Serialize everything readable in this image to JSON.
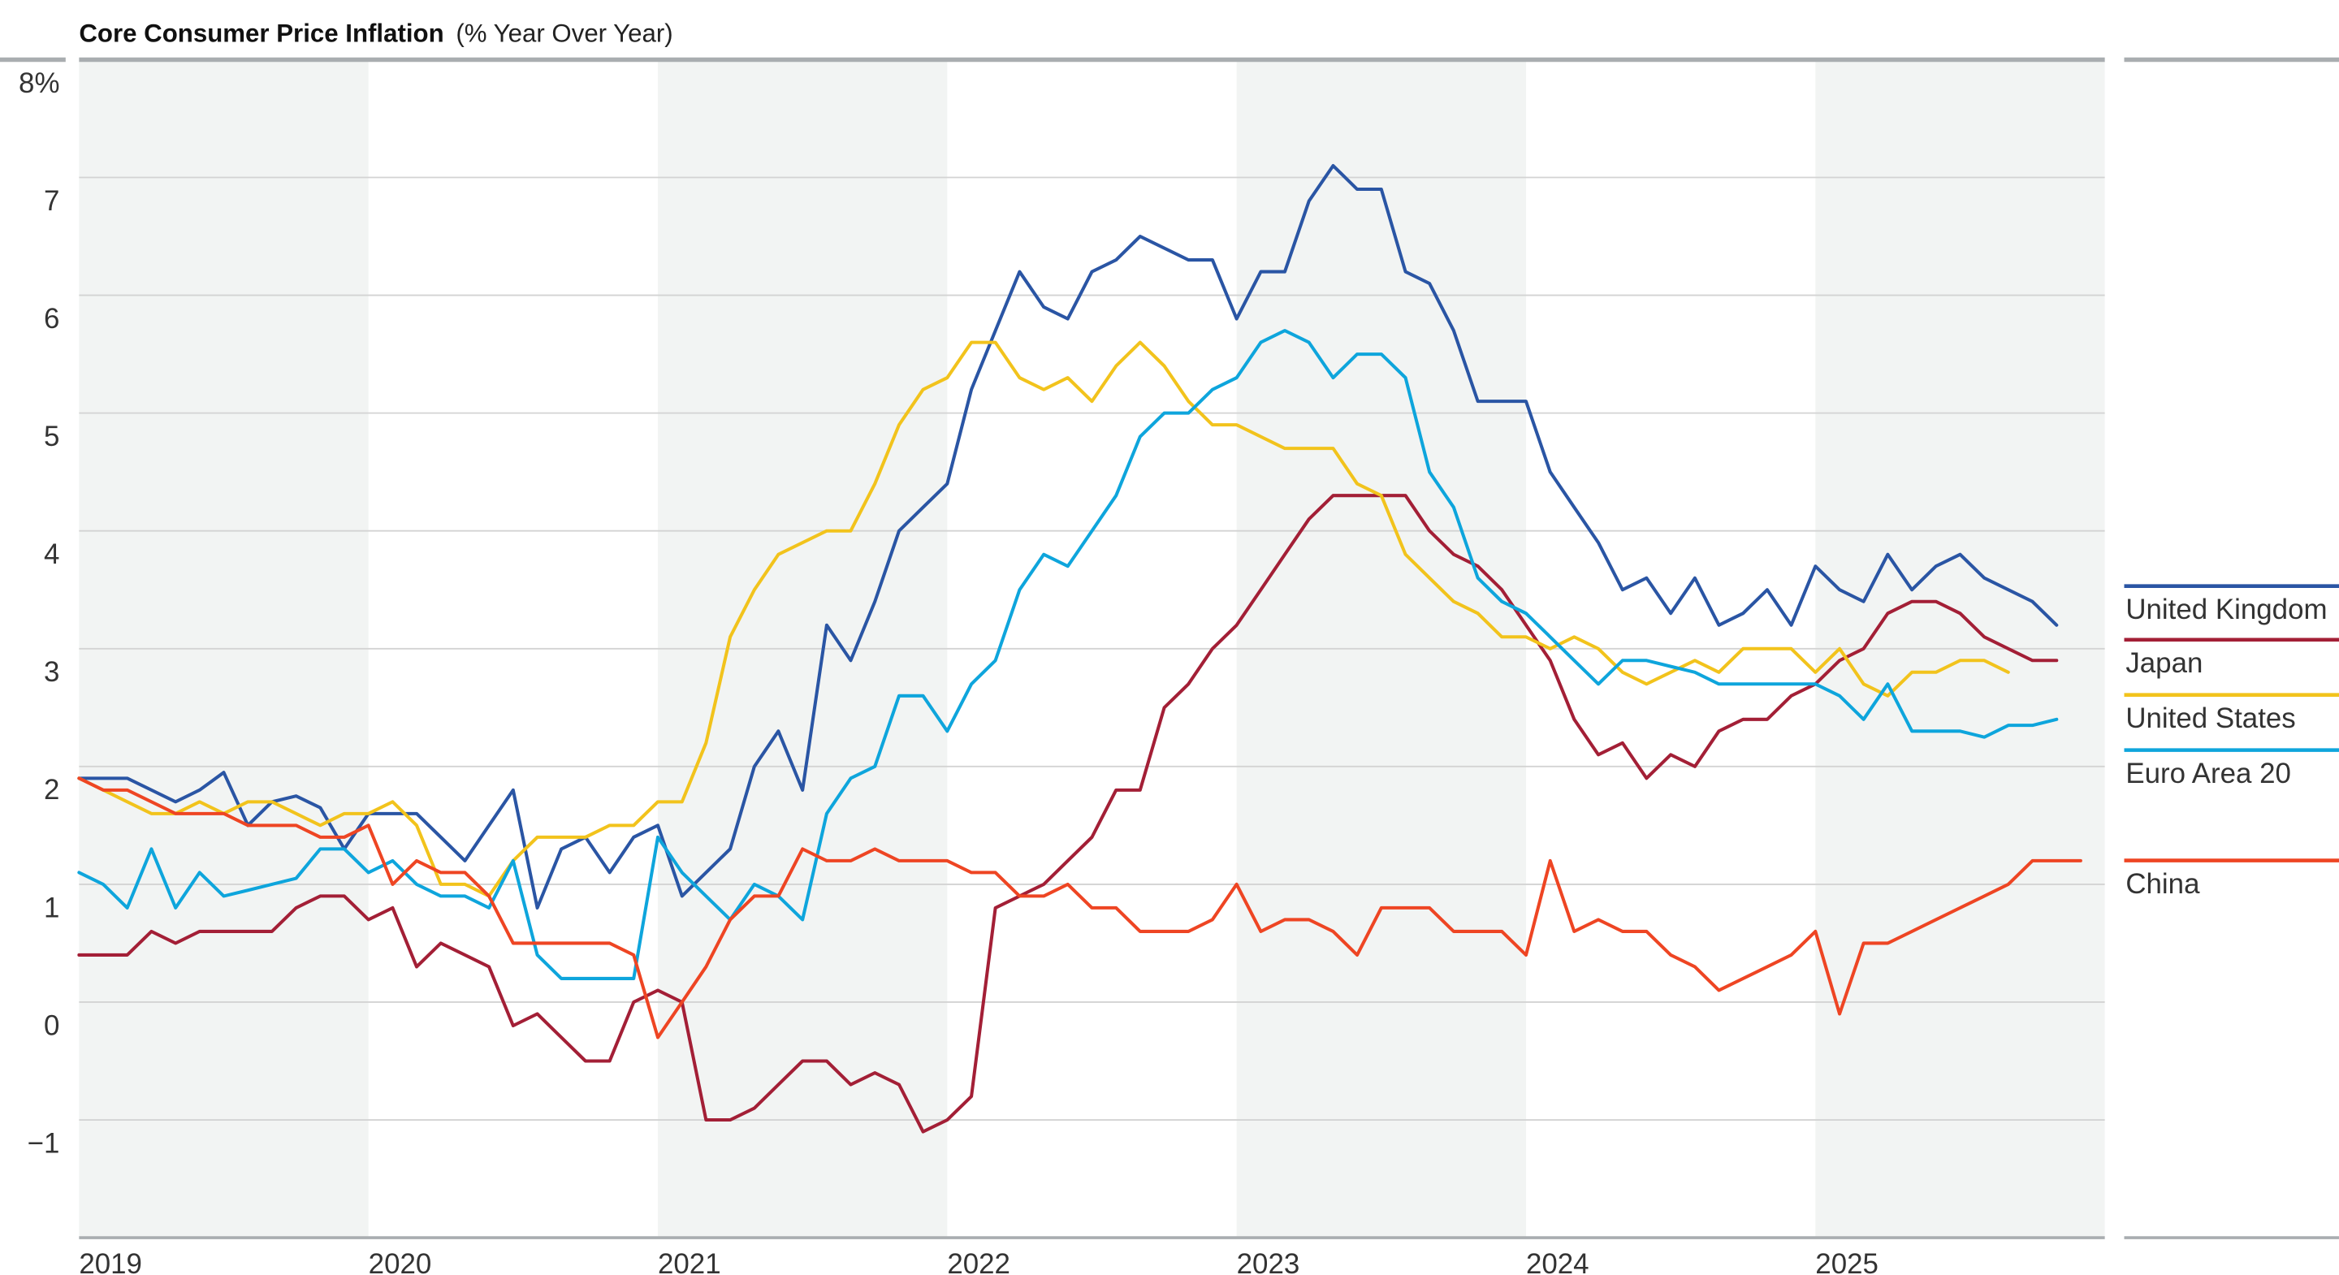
{
  "chart_data": {
    "type": "line",
    "title": "Core Consumer Price Inflation",
    "subtitle": "(% Year Over Year)",
    "xlabel": "",
    "ylabel": "",
    "x_start": "2019-01",
    "x_frequency": "monthly",
    "xlim": [
      "2019-01",
      "2025-12"
    ],
    "ylim": [
      -2,
      8
    ],
    "y_ticks": [
      {
        "v": 8,
        "label": "8%"
      },
      {
        "v": 7,
        "label": "7"
      },
      {
        "v": 6,
        "label": "6"
      },
      {
        "v": 5,
        "label": "5"
      },
      {
        "v": 4,
        "label": "4"
      },
      {
        "v": 3,
        "label": "3"
      },
      {
        "v": 2,
        "label": "2"
      },
      {
        "v": 1,
        "label": "1"
      },
      {
        "v": 0,
        "label": "0"
      },
      {
        "v": -1,
        "label": "−1"
      }
    ],
    "x_ticks": [
      "2019",
      "2020",
      "2021",
      "2022",
      "2023",
      "2024",
      "2025"
    ],
    "shaded_years": [
      "2019",
      "2021",
      "2023",
      "2025"
    ],
    "grid": true,
    "legend_placement": "right",
    "series": [
      {
        "name": "United Kingdom",
        "color": "#2a55a4",
        "values": [
          1.9,
          1.9,
          1.9,
          1.8,
          1.7,
          1.8,
          1.95,
          1.5,
          1.7,
          1.75,
          1.65,
          1.3,
          1.6,
          1.6,
          1.6,
          1.4,
          1.2,
          1.5,
          1.8,
          0.8,
          1.3,
          1.4,
          1.1,
          1.4,
          1.5,
          0.9,
          1.1,
          1.3,
          2.0,
          2.3,
          1.8,
          3.2,
          2.9,
          3.4,
          4.0,
          4.2,
          4.4,
          5.2,
          5.7,
          6.2,
          5.9,
          5.8,
          6.2,
          6.3,
          6.5,
          6.4,
          6.3,
          6.3,
          5.8,
          6.2,
          6.2,
          6.8,
          7.1,
          6.9,
          6.9,
          6.2,
          6.1,
          5.7,
          5.1,
          5.1,
          5.1,
          4.5,
          4.2,
          3.9,
          3.5,
          3.6,
          3.3,
          3.6,
          3.2,
          3.3,
          3.5,
          3.2,
          3.7,
          3.5,
          3.4,
          3.8,
          3.5,
          3.7,
          3.8,
          3.6,
          3.5,
          3.4,
          3.2
        ]
      },
      {
        "name": "Japan",
        "color": "#a31f36",
        "values": [
          0.4,
          0.4,
          0.4,
          0.6,
          0.5,
          0.6,
          0.6,
          0.6,
          0.6,
          0.8,
          0.9,
          0.9,
          0.7,
          0.8,
          0.3,
          0.5,
          0.4,
          0.3,
          -0.2,
          -0.1,
          -0.3,
          -0.5,
          -0.5,
          0.0,
          0.1,
          0.0,
          -1.0,
          -1.0,
          -0.9,
          -0.7,
          -0.5,
          -0.5,
          -0.7,
          -0.6,
          -0.7,
          -1.1,
          -1.0,
          -0.8,
          0.8,
          0.9,
          1.0,
          1.2,
          1.4,
          1.8,
          1.8,
          2.5,
          2.7,
          3.0,
          3.2,
          3.5,
          3.8,
          4.1,
          4.3,
          4.3,
          4.3,
          4.3,
          4.0,
          3.8,
          3.7,
          3.5,
          3.2,
          2.9,
          2.4,
          2.1,
          2.2,
          1.9,
          2.1,
          2.0,
          2.3,
          2.4,
          2.4,
          2.6,
          2.7,
          2.9,
          3.0,
          3.3,
          3.4,
          3.4,
          3.3,
          3.1,
          3.0,
          2.9,
          2.9
        ]
      },
      {
        "name": "United States",
        "color": "#f2c31c",
        "values": [
          1.9,
          1.8,
          1.7,
          1.6,
          1.6,
          1.7,
          1.6,
          1.7,
          1.7,
          1.6,
          1.5,
          1.6,
          1.6,
          1.7,
          1.5,
          1.0,
          1.0,
          0.9,
          1.2,
          1.4,
          1.4,
          1.4,
          1.5,
          1.5,
          1.7,
          1.7,
          2.2,
          3.1,
          3.5,
          3.8,
          3.9,
          4.0,
          4.0,
          4.4,
          4.9,
          5.2,
          5.3,
          5.6,
          5.6,
          5.3,
          5.2,
          5.3,
          5.1,
          5.4,
          5.6,
          5.4,
          5.1,
          4.9,
          4.9,
          4.8,
          4.7,
          4.7,
          4.7,
          4.4,
          4.3,
          3.8,
          3.6,
          3.4,
          3.3,
          3.1,
          3.1,
          3.0,
          3.1,
          3.0,
          2.8,
          2.7,
          2.8,
          2.9,
          2.8,
          3.0,
          3.0,
          3.0,
          2.8,
          3.0,
          2.7,
          2.6,
          2.8,
          2.8,
          2.9,
          2.9,
          2.8
        ]
      },
      {
        "name": "Euro Area 20",
        "color": "#0ea5dc",
        "values": [
          1.1,
          1.0,
          0.8,
          1.3,
          0.8,
          1.1,
          0.9,
          0.95,
          1.0,
          1.05,
          1.3,
          1.3,
          1.1,
          1.2,
          1.0,
          0.9,
          0.9,
          0.8,
          1.2,
          0.4,
          0.2,
          0.2,
          0.2,
          0.2,
          1.4,
          1.1,
          0.9,
          0.7,
          1.0,
          0.9,
          0.7,
          1.6,
          1.9,
          2.0,
          2.6,
          2.6,
          2.3,
          2.7,
          2.9,
          3.5,
          3.8,
          3.7,
          4.0,
          4.3,
          4.8,
          5.0,
          5.0,
          5.2,
          5.3,
          5.6,
          5.7,
          5.6,
          5.3,
          5.5,
          5.5,
          5.3,
          4.5,
          4.2,
          3.6,
          3.4,
          3.3,
          3.1,
          2.9,
          2.7,
          2.9,
          2.9,
          2.85,
          2.8,
          2.7,
          2.7,
          2.7,
          2.7,
          2.7,
          2.6,
          2.4,
          2.7,
          2.3,
          2.3,
          2.3,
          2.25,
          2.35,
          2.35,
          2.4
        ]
      },
      {
        "name": "China",
        "color": "#ee4523",
        "values": [
          1.9,
          1.8,
          1.8,
          1.7,
          1.6,
          1.6,
          1.6,
          1.5,
          1.5,
          1.5,
          1.4,
          1.4,
          1.5,
          1.0,
          1.2,
          1.1,
          1.1,
          0.9,
          0.5,
          0.5,
          0.5,
          0.5,
          0.5,
          0.4,
          -0.3,
          0.0,
          0.3,
          0.7,
          0.9,
          0.9,
          1.3,
          1.2,
          1.2,
          1.3,
          1.2,
          1.2,
          1.2,
          1.1,
          1.1,
          0.9,
          0.9,
          1.0,
          0.8,
          0.8,
          0.6,
          0.6,
          0.6,
          0.7,
          1.0,
          0.6,
          0.7,
          0.7,
          0.6,
          0.4,
          0.8,
          0.8,
          0.8,
          0.6,
          0.6,
          0.6,
          0.4,
          1.2,
          0.6,
          0.7,
          0.6,
          0.6,
          0.4,
          0.3,
          0.1,
          0.2,
          0.3,
          0.4,
          0.6,
          -0.1,
          0.5,
          0.5,
          0.6,
          0.7,
          0.8,
          0.9,
          1.0,
          1.2,
          1.2,
          1.2
        ]
      }
    ]
  }
}
